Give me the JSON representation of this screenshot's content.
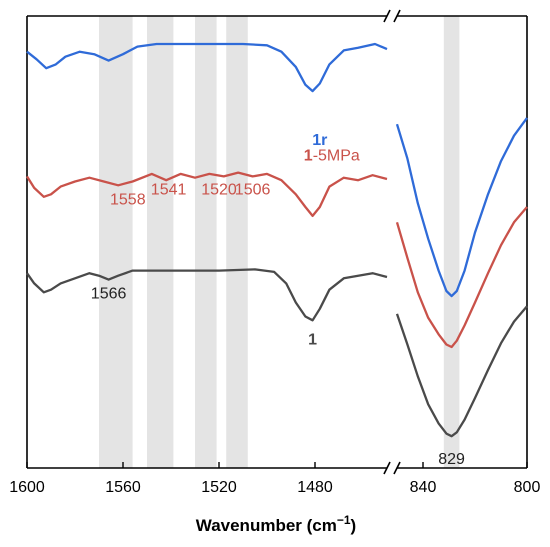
{
  "chart_data": {
    "type": "line",
    "title": "",
    "xlabel": "Wavenumber (cm⁻¹)",
    "ylabel": "",
    "broken_x_axis": true,
    "grid": false,
    "legend": "none",
    "x_reversed": true,
    "segments": [
      {
        "xlim": [
          1600,
          1450
        ],
        "ticks": [
          1600,
          1560,
          1520,
          1480
        ],
        "tick_labels": [
          "1600",
          "1560",
          "1520",
          "1480"
        ]
      },
      {
        "xlim": [
          850,
          800
        ],
        "ticks": [
          840,
          800
        ],
        "tick_labels": [
          "840",
          "800"
        ]
      }
    ],
    "highlight_bands": [
      {
        "from": 1570,
        "to": 1556
      },
      {
        "from": 1550,
        "to": 1539
      },
      {
        "from": 1530,
        "to": 1521
      },
      {
        "from": 1517,
        "to": 1508
      },
      {
        "from": 832,
        "to": 826
      }
    ],
    "series": [
      {
        "name": "1r",
        "color": "#2f6bd8",
        "label_parts": [
          {
            "text": "1",
            "bold": true
          },
          {
            "text": "r",
            "bold": true
          }
        ],
        "label_at": [
          1478,
          0.185
        ],
        "segment1": [
          [
            1600,
            0.92
          ],
          [
            1596,
            0.86
          ],
          [
            1592,
            0.79
          ],
          [
            1588,
            0.82
          ],
          [
            1584,
            0.88
          ],
          [
            1578,
            0.92
          ],
          [
            1572,
            0.9
          ],
          [
            1566,
            0.85
          ],
          [
            1560,
            0.9
          ],
          [
            1554,
            0.96
          ],
          [
            1546,
            0.98
          ],
          [
            1530,
            0.98
          ],
          [
            1510,
            0.98
          ],
          [
            1500,
            0.97
          ],
          [
            1494,
            0.92
          ],
          [
            1488,
            0.8
          ],
          [
            1484,
            0.66
          ],
          [
            1481,
            0.61
          ],
          [
            1478,
            0.67
          ],
          [
            1474,
            0.82
          ],
          [
            1468,
            0.93
          ],
          [
            1462,
            0.95
          ],
          [
            1455,
            0.98
          ],
          [
            1450,
            0.94
          ]
        ],
        "segment2": [
          [
            850,
            0.35
          ],
          [
            846,
            0.08
          ],
          [
            842,
            -0.27
          ],
          [
            838,
            -0.55
          ],
          [
            834,
            -0.8
          ],
          [
            831,
            -0.96
          ],
          [
            829,
            -1.0
          ],
          [
            827,
            -0.96
          ],
          [
            824,
            -0.8
          ],
          [
            820,
            -0.5
          ],
          [
            815,
            -0.2
          ],
          [
            810,
            0.06
          ],
          [
            805,
            0.26
          ],
          [
            800,
            0.4
          ]
        ]
      },
      {
        "name": "1-5MPa",
        "color": "#c9524a",
        "label_parts": [
          {
            "text": "1",
            "bold": true
          },
          {
            "text": "-5MPa",
            "bold": false
          }
        ],
        "label_at": [
          1473,
          0.065
        ],
        "segment1": [
          [
            1600,
            -0.06
          ],
          [
            1597,
            -0.15
          ],
          [
            1593,
            -0.22
          ],
          [
            1590,
            -0.2
          ],
          [
            1586,
            -0.14
          ],
          [
            1580,
            -0.1
          ],
          [
            1574,
            -0.07
          ],
          [
            1568,
            -0.1
          ],
          [
            1562,
            -0.13
          ],
          [
            1556,
            -0.1
          ],
          [
            1548,
            -0.04
          ],
          [
            1542,
            -0.09
          ],
          [
            1536,
            -0.04
          ],
          [
            1530,
            -0.07
          ],
          [
            1524,
            -0.04
          ],
          [
            1518,
            -0.06
          ],
          [
            1512,
            -0.03
          ],
          [
            1506,
            -0.06
          ],
          [
            1500,
            -0.04
          ],
          [
            1494,
            -0.09
          ],
          [
            1488,
            -0.2
          ],
          [
            1484,
            -0.3
          ],
          [
            1481,
            -0.37
          ],
          [
            1478,
            -0.3
          ],
          [
            1474,
            -0.14
          ],
          [
            1468,
            -0.07
          ],
          [
            1462,
            -0.09
          ],
          [
            1456,
            -0.05
          ],
          [
            1450,
            -0.08
          ]
        ],
        "segment2": [
          [
            850,
            -0.42
          ],
          [
            846,
            -0.7
          ],
          [
            842,
            -0.97
          ],
          [
            838,
            -1.17
          ],
          [
            834,
            -1.3
          ],
          [
            831,
            -1.38
          ],
          [
            829,
            -1.4
          ],
          [
            827,
            -1.35
          ],
          [
            824,
            -1.23
          ],
          [
            820,
            -1.05
          ],
          [
            815,
            -0.82
          ],
          [
            810,
            -0.6
          ],
          [
            805,
            -0.42
          ],
          [
            800,
            -0.3
          ]
        ]
      },
      {
        "name": "1",
        "color": "#4a4a4a",
        "label_parts": [
          {
            "text": "1",
            "bold": true
          }
        ],
        "label_at": [
          1481,
          -1.38
        ],
        "segment1": [
          [
            1600,
            -0.82
          ],
          [
            1597,
            -0.9
          ],
          [
            1593,
            -0.97
          ],
          [
            1590,
            -0.95
          ],
          [
            1586,
            -0.9
          ],
          [
            1580,
            -0.86
          ],
          [
            1574,
            -0.82
          ],
          [
            1570,
            -0.84
          ],
          [
            1566,
            -0.87
          ],
          [
            1562,
            -0.84
          ],
          [
            1556,
            -0.8
          ],
          [
            1548,
            -0.8
          ],
          [
            1520,
            -0.8
          ],
          [
            1505,
            -0.79
          ],
          [
            1497,
            -0.81
          ],
          [
            1492,
            -0.9
          ],
          [
            1488,
            -1.05
          ],
          [
            1484,
            -1.16
          ],
          [
            1481,
            -1.19
          ],
          [
            1478,
            -1.1
          ],
          [
            1474,
            -0.95
          ],
          [
            1468,
            -0.86
          ],
          [
            1462,
            -0.84
          ],
          [
            1456,
            -0.82
          ],
          [
            1450,
            -0.85
          ]
        ],
        "segment2": [
          [
            850,
            -1.14
          ],
          [
            846,
            -1.38
          ],
          [
            842,
            -1.63
          ],
          [
            838,
            -1.85
          ],
          [
            834,
            -2.0
          ],
          [
            831,
            -2.08
          ],
          [
            829,
            -2.1
          ],
          [
            827,
            -2.07
          ],
          [
            824,
            -1.97
          ],
          [
            820,
            -1.8
          ],
          [
            815,
            -1.58
          ],
          [
            810,
            -1.37
          ],
          [
            805,
            -1.2
          ],
          [
            800,
            -1.08
          ]
        ]
      }
    ],
    "annotations": [
      {
        "text": "1566",
        "x": 1566,
        "y": -1.02,
        "color": "#222222"
      },
      {
        "text": "1558",
        "x": 1558,
        "y": -0.28,
        "color": "#c9524a"
      },
      {
        "text": "1541",
        "x": 1541,
        "y": -0.2,
        "color": "#c9524a"
      },
      {
        "text": "1520",
        "x": 1520,
        "y": -0.2,
        "color": "#c9524a"
      },
      {
        "text": "1506",
        "x": 1506,
        "y": -0.2,
        "color": "#c9524a"
      },
      {
        "text": "829",
        "x": 829,
        "y": -2.32,
        "color": "#222222"
      }
    ],
    "ylim": [
      -2.35,
      1.2
    ]
  }
}
